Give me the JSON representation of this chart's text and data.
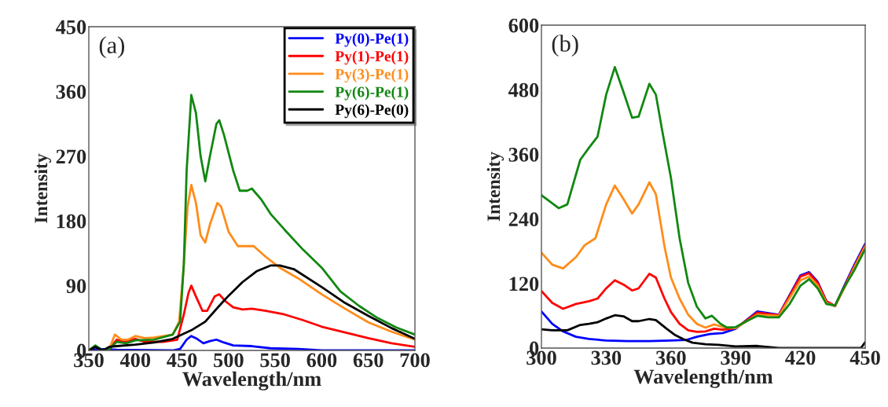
{
  "chart_data": [
    {
      "type": "line",
      "xlabel": "Wavelength/nm",
      "ylabel": "Intensity",
      "xlim": [
        350,
        700
      ],
      "xticks": [
        350,
        400,
        450,
        500,
        550,
        600,
        650,
        700
      ],
      "ylim": [
        0,
        450
      ],
      "yticks": [
        0,
        90,
        180,
        270,
        360,
        450
      ],
      "grid": false,
      "legend": "top right",
      "annotations": [
        "(a)"
      ],
      "series": [
        {
          "name": "Py(0)-Pe(1)",
          "color": "#0000ff",
          "x": [
            350,
            360,
            380,
            440,
            448,
            455,
            460,
            465,
            473,
            480,
            487,
            495,
            505,
            525,
            545,
            575,
            600,
            700
          ],
          "values": [
            0,
            2,
            1,
            0,
            2,
            15,
            20,
            17,
            10,
            13,
            15,
            11,
            7,
            6,
            3,
            2,
            0,
            0
          ]
        },
        {
          "name": "Py(1)-Pe(1)",
          "color": "#ff0000",
          "x": [
            365,
            372,
            380,
            388,
            400,
            410,
            430,
            445,
            452,
            457,
            460,
            465,
            472,
            477,
            485,
            490,
            497,
            505,
            515,
            525,
            540,
            560,
            580,
            600,
            625,
            650,
            675,
            700
          ],
          "values": [
            0,
            2,
            15,
            12,
            16,
            12,
            12,
            15,
            50,
            80,
            90,
            75,
            55,
            55,
            75,
            78,
            68,
            60,
            57,
            58,
            55,
            50,
            42,
            33,
            25,
            17,
            10,
            5
          ]
        },
        {
          "name": "Py(3)-Pe(1)",
          "color": "#ff8c1a",
          "x": [
            365,
            372,
            378,
            385,
            392,
            400,
            410,
            420,
            440,
            447,
            452,
            456,
            460,
            465,
            470,
            475,
            480,
            488,
            492,
            500,
            510,
            520,
            527,
            540,
            555,
            575,
            600,
            625,
            650,
            675,
            700
          ],
          "values": [
            0,
            2,
            22,
            15,
            15,
            20,
            17,
            18,
            22,
            40,
            120,
            200,
            230,
            205,
            160,
            150,
            175,
            205,
            200,
            165,
            145,
            145,
            145,
            130,
            115,
            100,
            78,
            58,
            39,
            26,
            15
          ]
        },
        {
          "name": "Py(6)-Pe(1)",
          "color": "#118811",
          "x": [
            350,
            357,
            365,
            372,
            380,
            390,
            400,
            420,
            440,
            448,
            452,
            455,
            460,
            465,
            470,
            475,
            480,
            487,
            490,
            495,
            505,
            512,
            520,
            525,
            535,
            545,
            560,
            580,
            600,
            620,
            640,
            660,
            680,
            700
          ],
          "values": [
            0,
            7,
            0,
            2,
            12,
            10,
            14,
            15,
            22,
            40,
            120,
            250,
            355,
            330,
            270,
            235,
            270,
            315,
            320,
            300,
            250,
            222,
            222,
            225,
            210,
            190,
            168,
            140,
            115,
            82,
            62,
            45,
            32,
            22
          ]
        },
        {
          "name": "Py(6)-Pe(0)",
          "color": "#000000",
          "x": [
            350,
            357,
            365,
            372,
            380,
            400,
            420,
            440,
            460,
            475,
            490,
            500,
            515,
            530,
            545,
            555,
            570,
            600,
            625,
            650,
            675,
            700
          ],
          "values": [
            0,
            5,
            0,
            5,
            6,
            8,
            11,
            16,
            28,
            40,
            62,
            76,
            95,
            110,
            118,
            118,
            113,
            88,
            66,
            48,
            31,
            16
          ]
        }
      ]
    },
    {
      "type": "line",
      "xlabel": "Wavelength/nm",
      "ylabel": "Intensity",
      "xlim": [
        300,
        450
      ],
      "xticks": [
        300,
        330,
        360,
        390,
        420,
        450
      ],
      "ylim": [
        0,
        600
      ],
      "yticks": [
        0,
        120,
        240,
        360,
        480,
        600
      ],
      "grid": false,
      "annotations": [
        "(b)"
      ],
      "series": [
        {
          "color": "#0000ff",
          "x": [
            300,
            305,
            310,
            316,
            322,
            330,
            340,
            350,
            360,
            367,
            372,
            378,
            384,
            390,
            400,
            410,
            420,
            424,
            428,
            432,
            436,
            440,
            445,
            450
          ],
          "values": [
            68,
            45,
            31,
            21,
            17,
            14,
            13,
            13,
            14,
            15,
            21,
            26,
            28,
            36,
            68,
            62,
            135,
            141,
            123,
            87,
            78,
            113,
            155,
            194
          ]
        },
        {
          "color": "#ff0000",
          "x": [
            300,
            305,
            310,
            316,
            322,
            326,
            330,
            334,
            338,
            342,
            345,
            350,
            353,
            357,
            360,
            364,
            368,
            372,
            376,
            380,
            384,
            390,
            400,
            410,
            420,
            424,
            428,
            432,
            436,
            440,
            445,
            450
          ],
          "values": [
            106,
            84,
            73,
            82,
            87,
            92,
            111,
            126,
            118,
            107,
            111,
            138,
            131,
            92,
            67,
            45,
            33,
            30,
            31,
            36,
            34,
            37,
            66,
            61,
            133,
            139,
            121,
            87,
            78,
            111,
            152,
            191
          ]
        },
        {
          "color": "#ff8c1a",
          "x": [
            300,
            305,
            310,
            316,
            320,
            325,
            330,
            334,
            338,
            342,
            345,
            350,
            353,
            357,
            360,
            364,
            368,
            372,
            376,
            380,
            384,
            390,
            400,
            410,
            420,
            424,
            428,
            432,
            436,
            440,
            445,
            450
          ],
          "values": [
            177,
            155,
            148,
            169,
            191,
            204,
            267,
            302,
            277,
            250,
            267,
            308,
            286,
            189,
            131,
            92,
            62,
            45,
            38,
            44,
            39,
            37,
            62,
            60,
            126,
            133,
            116,
            84,
            78,
            109,
            150,
            189
          ]
        },
        {
          "color": "#118811",
          "x": [
            300,
            308,
            312,
            318,
            322,
            326,
            330,
            334,
            338,
            342,
            345,
            350,
            353,
            356,
            360,
            364,
            368,
            372,
            376,
            379,
            383,
            386,
            390,
            395,
            400,
            405,
            410,
            415,
            420,
            424,
            428,
            432,
            436,
            440,
            445,
            450
          ],
          "values": [
            284,
            260,
            267,
            350,
            372,
            393,
            471,
            522,
            476,
            428,
            430,
            491,
            471,
            403,
            316,
            204,
            121,
            77,
            55,
            60,
            45,
            38,
            39,
            50,
            60,
            57,
            57,
            82,
            116,
            128,
            111,
            82,
            79,
            111,
            145,
            184
          ]
        },
        {
          "color": "#000000",
          "x": [
            300,
            305,
            312,
            318,
            322,
            326,
            330,
            334,
            338,
            342,
            345,
            350,
            353,
            358,
            362,
            366,
            370,
            376,
            382,
            390,
            400,
            410,
            430,
            448,
            450
          ],
          "values": [
            35,
            33,
            33,
            43,
            45,
            48,
            55,
            61,
            59,
            50,
            50,
            54,
            52,
            36,
            24,
            16,
            10,
            7,
            6,
            3,
            4,
            0,
            0,
            0,
            11
          ]
        }
      ]
    }
  ]
}
